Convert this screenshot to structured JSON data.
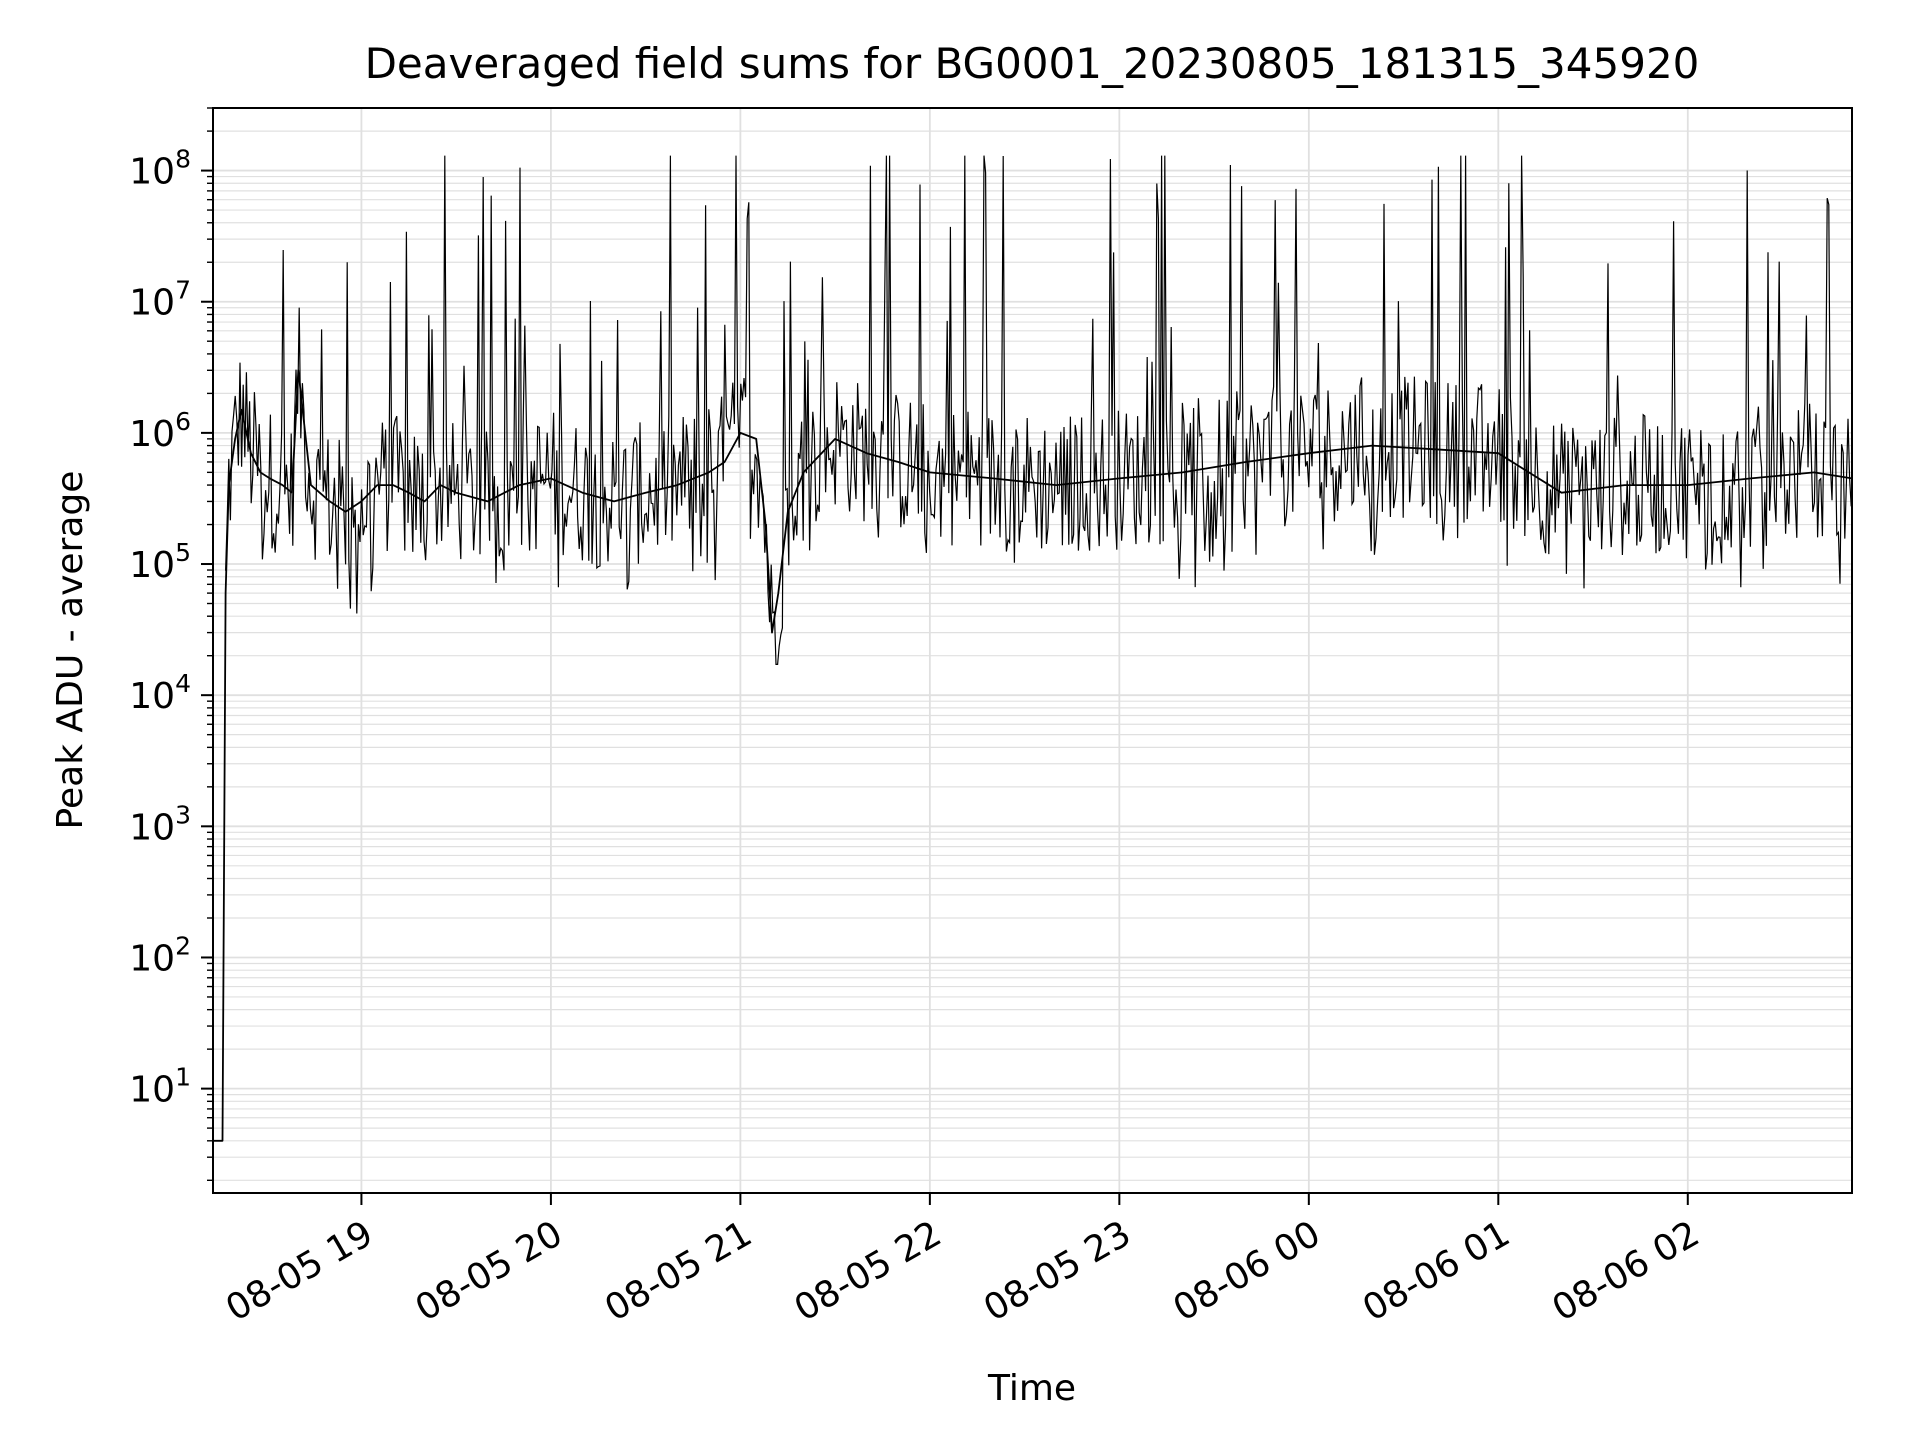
{
  "chart_data": {
    "type": "line",
    "title": "Deaveraged field sums for BG0001_20230805_181315_345920",
    "xlabel": "Time",
    "ylabel": "Peak ADU - average",
    "yscale": "log",
    "ylim": [
      1.6,
      300000000
    ],
    "xlim": [
      "2023-08-05 18:13",
      "2023-08-06 02:52"
    ],
    "grid": true,
    "line_color": "#000000",
    "grid_color": "#e0e0e0",
    "x_ticks": [
      {
        "value": "2023-08-05 19:00",
        "label": "08-05 19"
      },
      {
        "value": "2023-08-05 20:00",
        "label": "08-05 20"
      },
      {
        "value": "2023-08-05 21:00",
        "label": "08-05 21"
      },
      {
        "value": "2023-08-05 22:00",
        "label": "08-05 22"
      },
      {
        "value": "2023-08-05 23:00",
        "label": "08-05 23"
      },
      {
        "value": "2023-08-06 00:00",
        "label": "08-06 00"
      },
      {
        "value": "2023-08-06 01:00",
        "label": "08-06 01"
      },
      {
        "value": "2023-08-06 02:00",
        "label": "08-06 02"
      }
    ],
    "y_ticks": [
      {
        "value": 10,
        "base": "10",
        "exp": "1"
      },
      {
        "value": 100,
        "base": "10",
        "exp": "2"
      },
      {
        "value": 1000,
        "base": "10",
        "exp": "3"
      },
      {
        "value": 10000,
        "base": "10",
        "exp": "4"
      },
      {
        "value": 100000,
        "base": "10",
        "exp": "5"
      },
      {
        "value": 1000000,
        "base": "10",
        "exp": "6"
      },
      {
        "value": 10000000,
        "base": "10",
        "exp": "7"
      },
      {
        "value": 100000000,
        "base": "10",
        "exp": "8"
      }
    ],
    "series": [
      {
        "x": [
          "2023-08-05 18:13",
          "2023-08-05 18:15",
          "2023-08-05 18:16",
          "2023-08-05 18:17",
          "2023-08-05 18:18",
          "2023-08-05 18:20",
          "2023-08-05 18:22",
          "2023-08-05 18:25",
          "2023-08-05 18:28",
          "2023-08-05 18:31",
          "2023-08-05 18:35",
          "2023-08-05 18:38",
          "2023-08-05 18:40",
          "2023-08-05 18:44",
          "2023-08-05 18:50",
          "2023-08-05 18:55",
          "2023-08-05 19:00",
          "2023-08-05 19:05",
          "2023-08-05 19:10",
          "2023-08-05 19:15",
          "2023-08-05 19:20",
          "2023-08-05 19:25",
          "2023-08-05 19:30",
          "2023-08-05 19:40",
          "2023-08-05 19:50",
          "2023-08-05 20:00",
          "2023-08-05 20:10",
          "2023-08-05 20:20",
          "2023-08-05 20:30",
          "2023-08-05 20:40",
          "2023-08-05 20:50",
          "2023-08-05 20:55",
          "2023-08-05 21:00",
          "2023-08-05 21:05",
          "2023-08-05 21:08",
          "2023-08-05 21:10",
          "2023-08-05 21:12",
          "2023-08-05 21:15",
          "2023-08-05 21:20",
          "2023-08-05 21:30",
          "2023-08-05 21:40",
          "2023-08-05 21:50",
          "2023-08-05 22:00",
          "2023-08-05 22:20",
          "2023-08-05 22:40",
          "2023-08-05 23:00",
          "2023-08-05 23:20",
          "2023-08-05 23:40",
          "2023-08-06 00:00",
          "2023-08-06 00:20",
          "2023-08-06 00:40",
          "2023-08-06 01:00",
          "2023-08-06 01:20",
          "2023-08-06 01:40",
          "2023-08-06 02:00",
          "2023-08-06 02:20",
          "2023-08-06 02:40",
          "2023-08-06 02:52"
        ],
        "y": [
          4,
          4,
          4,
          60000,
          400000,
          900000,
          1500000,
          700000,
          500000,
          450000,
          400000,
          350000,
          3000000,
          400000,
          300000,
          250000,
          300000,
          400000,
          400000,
          350000,
          300000,
          400000,
          350000,
          300000,
          400000,
          450000,
          350000,
          300000,
          350000,
          400000,
          500000,
          600000,
          1000000,
          900000,
          200000,
          30000,
          60000,
          250000,
          500000,
          900000,
          700000,
          600000,
          500000,
          450000,
          400000,
          450000,
          500000,
          600000,
          700000,
          800000,
          750000,
          700000,
          350000,
          400000,
          400000,
          450000,
          500000,
          450000
        ]
      }
    ]
  }
}
